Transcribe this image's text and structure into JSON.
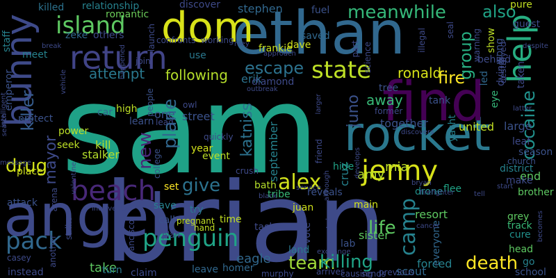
{
  "background": "#000000",
  "words": [
    {
      "t": "sam",
      "c": "#1fa187"
    },
    {
      "t": "brian",
      "c": "#3e4a89"
    },
    {
      "t": "ethan",
      "c": "#31688e"
    },
    {
      "t": "angela",
      "c": "#3e4a89"
    },
    {
      "t": "rocket",
      "c": "#2a788e"
    },
    {
      "t": "find",
      "c": "#440154"
    },
    {
      "t": "dom",
      "c": "#d8e219"
    },
    {
      "t": "bunny",
      "c": "#3e4a89"
    },
    {
      "t": "return",
      "c": "#414487"
    },
    {
      "t": "help",
      "c": "#27ad81"
    },
    {
      "t": "beach",
      "c": "#482878"
    },
    {
      "t": "jenny",
      "c": "#d8e219"
    },
    {
      "t": "penguin",
      "c": "#20a386"
    },
    {
      "t": "island",
      "c": "#5ec962"
    },
    {
      "t": "state",
      "c": "#bddf26"
    },
    {
      "t": "pack",
      "c": "#31688e"
    },
    {
      "t": "alex",
      "c": "#d0e11c"
    },
    {
      "t": "camp",
      "c": "#26828e"
    },
    {
      "t": "meanwhile",
      "c": "#35b779"
    },
    {
      "t": "drug",
      "c": "#d2e21b"
    },
    {
      "t": "death",
      "c": "#fde725"
    },
    {
      "t": "team",
      "c": "#a0da39"
    },
    {
      "t": "life",
      "c": "#5ec962"
    },
    {
      "t": "killing",
      "c": "#20a386"
    },
    {
      "t": "cocaine",
      "c": "#21918c"
    },
    {
      "t": "give",
      "c": "#2c728e"
    },
    {
      "t": "new",
      "c": "#482878"
    },
    {
      "t": "plane",
      "c": "#31688e"
    },
    {
      "t": "escape",
      "c": "#2c728e"
    },
    {
      "t": "fire",
      "c": "#fde725"
    },
    {
      "t": "also",
      "c": "#20a386"
    },
    {
      "t": "group",
      "c": "#27ad81"
    },
    {
      "t": "katniss",
      "c": "#2c728e"
    },
    {
      "t": "killer",
      "c": "#365c8d"
    },
    {
      "t": "juno",
      "c": "#3b528b"
    },
    {
      "t": "mayor",
      "c": "#3e4a89"
    },
    {
      "t": "attempt",
      "c": "#2a788e"
    },
    {
      "t": "following",
      "c": "#b5de2b"
    },
    {
      "t": "away",
      "c": "#38b977"
    },
    {
      "t": "ronald",
      "c": "#d8e219"
    },
    {
      "t": "amy",
      "c": "#b5de2b"
    },
    {
      "t": "mia",
      "c": "#bddf26"
    },
    {
      "t": "take",
      "c": "#5ec962"
    },
    {
      "t": "eagle",
      "c": "#31688e"
    },
    {
      "t": "sister",
      "c": "#5ec962"
    },
    {
      "t": "stephen",
      "c": "#31688e"
    },
    {
      "t": "erik",
      "c": "#2c728e"
    },
    {
      "t": "one",
      "c": "#3b528b"
    },
    {
      "t": "street",
      "c": "#3b528b"
    },
    {
      "t": "end",
      "c": "#5ec962"
    },
    {
      "t": "kill",
      "c": "#b5de2b"
    },
    {
      "t": "stalker",
      "c": "#b5de2b"
    },
    {
      "t": "together",
      "c": "#3b528b"
    },
    {
      "t": "united",
      "c": "#c2df23"
    },
    {
      "t": "large",
      "c": "#3b528b"
    },
    {
      "t": "september",
      "c": "#26828e"
    },
    {
      "t": "cruz",
      "c": "#26828e"
    },
    {
      "t": "resort",
      "c": "#5ec962"
    },
    {
      "t": "forced",
      "c": "#26828e"
    },
    {
      "t": "scout",
      "c": "#31688e"
    },
    {
      "t": "show",
      "c": "#bddf26"
    },
    {
      "t": "led",
      "c": "#31688e"
    },
    {
      "t": "killed",
      "c": "#2c728e"
    },
    {
      "t": "relationship",
      "c": "#26828e"
    },
    {
      "t": "romantic",
      "c": "#6ccd5a"
    },
    {
      "t": "discover",
      "c": "#3e4a89"
    },
    {
      "t": "fuel",
      "c": "#3b528b"
    },
    {
      "t": "pure",
      "c": "#c2df23"
    },
    {
      "t": "guest",
      "c": "#3e4a89"
    },
    {
      "t": "staff",
      "c": "#26828e"
    },
    {
      "t": "zeke",
      "c": "#31688e"
    },
    {
      "t": "others",
      "c": "#3e4a89"
    },
    {
      "t": "meet",
      "c": "#26828e"
    },
    {
      "t": "frankie",
      "c": "#c8e020"
    },
    {
      "t": "dave",
      "c": "#d0e11c"
    },
    {
      "t": "saved",
      "c": "#31688e"
    },
    {
      "t": "use",
      "c": "#2a788e"
    },
    {
      "t": "emperor",
      "c": "#3b528b"
    },
    {
      "t": "protect",
      "c": "#3b528b"
    },
    {
      "t": "power",
      "c": "#bddf26"
    },
    {
      "t": "seek",
      "c": "#bddf26"
    },
    {
      "t": "car",
      "c": "#31688e"
    },
    {
      "t": "high",
      "c": "#bddf26"
    },
    {
      "t": "learn",
      "c": "#3b528b"
    },
    {
      "t": "year",
      "c": "#d2e21b"
    },
    {
      "t": "event",
      "c": "#bddf26"
    },
    {
      "t": "place",
      "c": "#d0e11c"
    },
    {
      "t": "attack",
      "c": "#3b528b"
    },
    {
      "t": "set",
      "c": "#fde725"
    },
    {
      "t": "save",
      "c": "#26828e"
    },
    {
      "t": "try",
      "c": "#2a788e"
    },
    {
      "t": "time",
      "c": "#c2df23"
    },
    {
      "t": "call",
      "c": "#3b528b"
    },
    {
      "t": "bath",
      "c": "#b5de2b"
    },
    {
      "t": "tribe",
      "c": "#38b977"
    },
    {
      "t": "juan",
      "c": "#d0e11c"
    },
    {
      "t": "hide",
      "c": "#20a386"
    },
    {
      "t": "reveals",
      "c": "#3b528b"
    },
    {
      "t": "main",
      "c": "#d2e21b"
    },
    {
      "t": "drone",
      "c": "#21918c"
    },
    {
      "t": "grey",
      "c": "#5ec962"
    },
    {
      "t": "track",
      "c": "#38b977"
    },
    {
      "t": "cure",
      "c": "#21918c"
    },
    {
      "t": "head",
      "c": "#5ec962"
    },
    {
      "t": "everyone",
      "c": "#31688e"
    },
    {
      "t": "flee",
      "c": "#20a386"
    },
    {
      "t": "brother",
      "c": "#5ec962"
    },
    {
      "t": "district",
      "c": "#26828e"
    },
    {
      "t": "season",
      "c": "#3b528b"
    },
    {
      "t": "make",
      "c": "#3e4a89"
    },
    {
      "t": "school",
      "c": "#3b528b"
    },
    {
      "t": "go",
      "c": "#26828e"
    },
    {
      "t": "homer",
      "c": "#31688e"
    },
    {
      "t": "leave",
      "c": "#31688e"
    },
    {
      "t": "claim",
      "c": "#3e4a89"
    },
    {
      "t": "instead",
      "c": "#3e4a89"
    },
    {
      "t": "turn",
      "c": "#2a788e"
    },
    {
      "t": "task",
      "c": "#3e4a89"
    },
    {
      "t": "vote",
      "c": "#3e4a89"
    },
    {
      "t": "land",
      "c": "#2a788e"
    },
    {
      "t": "lab",
      "c": "#3b528b"
    },
    {
      "t": "tree",
      "c": "#3b528b"
    },
    {
      "t": "tank",
      "c": "#3b528b"
    },
    {
      "t": "diamond",
      "c": "#3e4a89"
    },
    {
      "t": "yacht",
      "c": "#26828e"
    },
    {
      "t": "eye",
      "c": "#35b779"
    },
    {
      "t": "leaf",
      "c": "#3e4a89"
    },
    {
      "t": "wong",
      "c": "#3b528b"
    },
    {
      "t": "dying",
      "c": "#3e4a89"
    },
    {
      "t": "behind",
      "c": "#3e4a89"
    },
    {
      "t": "taken",
      "c": "#3e4a89"
    },
    {
      "t": "church",
      "c": "#3b528b"
    },
    {
      "t": "former",
      "c": "#3e4a89"
    },
    {
      "t": "college",
      "c": "#3b528b"
    },
    {
      "t": "people",
      "c": "#3b528b"
    },
    {
      "t": "owl",
      "c": "#3e4a89"
    },
    {
      "t": "lead",
      "c": "#3e4a89"
    },
    {
      "t": "quickly",
      "c": "#3e4a89"
    },
    {
      "t": "crush",
      "c": "#3e4a89"
    },
    {
      "t": "friend",
      "c": "#3e4a89"
    },
    {
      "t": "arena",
      "c": "#3e4a89"
    },
    {
      "t": "strike",
      "c": "#3e4a89"
    },
    {
      "t": "another",
      "c": "#3e4a89"
    },
    {
      "t": "casey",
      "c": "#3e4a89"
    },
    {
      "t": "francisco",
      "c": "#3e4a89"
    },
    {
      "t": "hand",
      "c": "#c2df23"
    },
    {
      "t": "plan",
      "c": "#3e4a89"
    },
    {
      "t": "pregnant",
      "c": "#c2df23"
    },
    {
      "t": "captain",
      "c": "#3e4a89"
    },
    {
      "t": "murphy",
      "c": "#3e4a89"
    },
    {
      "t": "previous",
      "c": "#3e4a89"
    },
    {
      "t": "sends",
      "c": "#3e4a89"
    },
    {
      "t": "causing",
      "c": "#3e4a89"
    },
    {
      "t": "arrives",
      "c": "#3e4a89"
    },
    {
      "t": "science",
      "c": "#3e4a89"
    },
    {
      "t": "illegal",
      "c": "#3e4a89"
    },
    {
      "t": "part",
      "c": "#3e4a89"
    },
    {
      "t": "launch",
      "c": "#3e4a89"
    },
    {
      "t": "confronts",
      "c": "#3e4a89"
    },
    {
      "t": "working",
      "c": "#3e4a89"
    },
    {
      "t": "join",
      "c": "#3e4a89"
    },
    {
      "t": "approach",
      "c": "#3e4a89"
    },
    {
      "t": "riley",
      "c": "#3e4a89"
    },
    {
      "t": "seal",
      "c": "#3e4a89"
    },
    {
      "t": "warning",
      "c": "#3e4a89"
    },
    {
      "t": "destroyed",
      "c": "#3e4a89"
    },
    {
      "t": "despite",
      "c": "#3e4a89"
    },
    {
      "t": "latter",
      "c": "#3e4a89"
    },
    {
      "t": "message",
      "c": "#3e4a89"
    },
    {
      "t": "valentine",
      "c": "#3e4a89"
    },
    {
      "t": "search",
      "c": "#3e4a89"
    },
    {
      "t": "intelligent",
      "c": "#3e4a89"
    },
    {
      "t": "vehicle",
      "c": "#3e4a89"
    },
    {
      "t": "happened",
      "c": "#3e4a89"
    },
    {
      "t": "outbreak",
      "c": "#3e4a89"
    },
    {
      "t": "intervenes",
      "c": "#3e4a89"
    },
    {
      "t": "discovers",
      "c": "#3e4a89"
    },
    {
      "t": "develops",
      "c": "#3e4a89"
    },
    {
      "t": "bryan",
      "c": "#3e4a89"
    },
    {
      "t": "firefighter",
      "c": "#3e4a89"
    },
    {
      "t": "although",
      "c": "#3e4a89"
    },
    {
      "t": "air",
      "c": "#3e4a89"
    },
    {
      "t": "black",
      "c": "#3e4a89"
    },
    {
      "t": "service",
      "c": "#3e4a89"
    },
    {
      "t": "becomes",
      "c": "#3e4a89"
    },
    {
      "t": "exchange",
      "c": "#3e4a89"
    },
    {
      "t": "cancer",
      "c": "#3e4a89"
    },
    {
      "t": "tell",
      "c": "#3e4a89"
    },
    {
      "t": "break",
      "c": "#3e4a89"
    },
    {
      "t": "larger",
      "c": "#3e4a89"
    },
    {
      "t": "start",
      "c": "#3e4a89"
    }
  ]
}
